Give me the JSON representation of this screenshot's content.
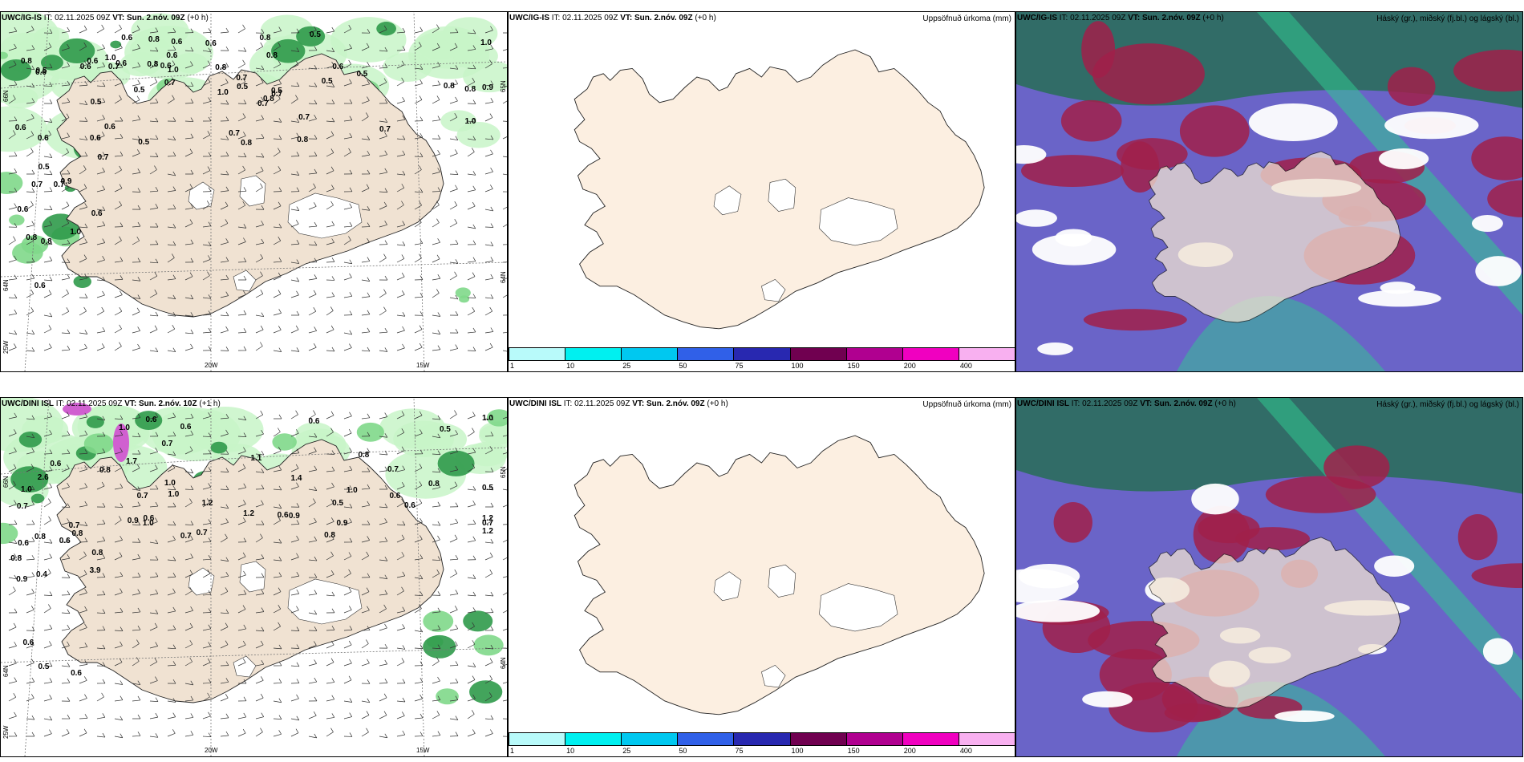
{
  "colors": {
    "land": "#f0e2d2",
    "land_plain": "#fcefe1",
    "ice": "#ffffff",
    "precip_light": "#c8f5c8",
    "precip_mid": "#7fd88a",
    "precip_dark": "#2f9a4a",
    "precip_pink": "#d060d0",
    "cloud_high": "#2e6d62",
    "cloud_mid": "#6a64c8",
    "cloud_low": "#a0204a",
    "cloud_teal": "#30c890"
  },
  "panels": [
    {
      "id": "top-left",
      "title_model": "UWC/IG-IS",
      "title_it": "IT: 02.11.2025 09Z",
      "title_vt_label": "VT:",
      "title_vt": "Sun. 2.nóv. 09Z",
      "title_lead": "(+0 h)",
      "right_label": "",
      "lat_labels": [
        "66N",
        "64N"
      ],
      "lat_right": [
        "65N",
        "64N"
      ],
      "lon_labels": [
        "25W",
        "20W",
        "15W"
      ],
      "values": [
        "0.6",
        "0.8",
        "0.6",
        "0.6",
        "0.5",
        "0.8",
        "0.8",
        "0.7",
        "0.8",
        "0.8",
        "0.7",
        "0.7",
        "0.8",
        "1.0",
        "0.6",
        "0.7",
        "0.8",
        "0.5",
        "0.5",
        "0.6",
        "0.5",
        "0.6",
        "0.6",
        "0.7",
        "1.0",
        "0.5",
        "0.5",
        "0.6",
        "1.0",
        "0.7",
        "0.6",
        "0.6",
        "1.0",
        "0.6",
        "0.8",
        "0.7",
        "0.7",
        "0.8",
        "0.5",
        "0.5",
        "0.7",
        "0.6",
        "0.6",
        "0.8",
        "0.8",
        "0.6",
        "0.7",
        "1.0",
        "0.7",
        "0.5",
        "0.5",
        "0.6",
        "0.6",
        "0.8",
        "0.6",
        "0.8",
        "1.0",
        "0.9",
        "0.9"
      ]
    },
    {
      "id": "top-middle",
      "title_model": "UWC/IG-IS",
      "title_it": "IT: 02.11.2025 09Z",
      "title_vt_label": "VT:",
      "title_vt": "Sun. 2.nóv. 09Z",
      "title_lead": "(+0 h)",
      "right_label": "Uppsöfnuð úrkoma (mm)"
    },
    {
      "id": "top-right",
      "title_model": "UWC/IG-IS",
      "title_it": "IT: 02.11.2025 09Z",
      "title_vt_label": "VT:",
      "title_vt": "Sun. 2.nóv. 09Z",
      "title_lead": "(+0 h)",
      "right_label": "Háský (gr.), miðský (fj.bl.) og lágský (bl.)"
    },
    {
      "id": "bottom-left",
      "title_model": "UWC/DINI ISL",
      "title_it": "IT: 02.11.2025 09Z",
      "title_vt_label": "VT:",
      "title_vt": "Sun. 2.nóv. 10Z",
      "title_lead": "(+1 h)",
      "right_label": "",
      "lat_labels": [
        "66N",
        "64N"
      ],
      "lat_right": [
        "65N",
        "64N"
      ],
      "lon_labels": [
        "25W",
        "20W",
        "15W"
      ],
      "values": [
        "0.4",
        "0.6",
        "0.7",
        "0.7",
        "0.6",
        "0.5",
        "0.6",
        "1.0",
        "0.7",
        "0.8",
        "0.6",
        "0.5",
        "0.6",
        "0.8",
        "0.6",
        "0.9",
        "0.9",
        "1.0",
        "0.8",
        "0.7",
        "0.7",
        "0.8",
        "0.6",
        "0.9",
        "0.6",
        "0.7",
        "0.5",
        "0.6",
        "0.6",
        "1.0",
        "0.8",
        "0.7",
        "1.2",
        "1.0",
        "1.0",
        "0.6",
        "0.8",
        "1.1",
        "1.0",
        "0.7",
        "0.8",
        "1.2",
        "0.6",
        "0.8",
        "1.0",
        "0.5",
        "1.2",
        "1.7",
        "2.6",
        "1.2",
        "1.4",
        "3.9",
        "0.9"
      ]
    },
    {
      "id": "bottom-middle",
      "title_model": "UWC/DINI ISL",
      "title_it": "IT: 02.11.2025 09Z",
      "title_vt_label": "VT:",
      "title_vt": "Sun. 2.nóv. 09Z",
      "title_lead": "(+0 h)",
      "right_label": "Uppsöfnuð úrkoma (mm)"
    },
    {
      "id": "bottom-right",
      "title_model": "UWC/DINI ISL",
      "title_it": "IT: 02.11.2025 09Z",
      "title_vt_label": "VT:",
      "title_vt": "Sun. 2.nóv. 09Z",
      "title_lead": "(+0 h)",
      "right_label": "Háský (gr.), miðský (fj.bl.) og lágský (bl.)"
    }
  ],
  "colorbar": {
    "ticks": [
      "1",
      "10",
      "25",
      "50",
      "75",
      "100",
      "150",
      "200",
      "400"
    ],
    "colors": [
      "#b8fafa",
      "#00f0f0",
      "#00c8f0",
      "#3060e8",
      "#2828b0",
      "#700050",
      "#b00090",
      "#f000c0",
      "#f8b0f0"
    ]
  }
}
